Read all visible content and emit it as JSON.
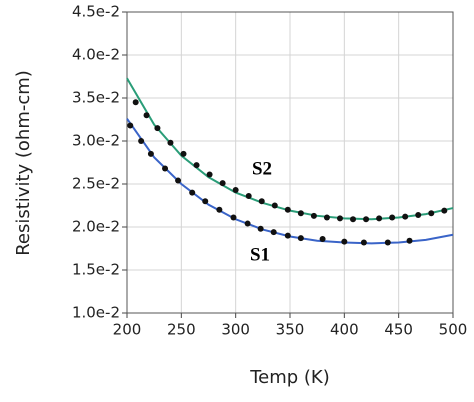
{
  "chart_data": {
    "type": "scatter",
    "xlabel": "Temp (K)",
    "ylabel": "Resistivity (ohm-cm)",
    "xlim": [
      200,
      500
    ],
    "xticks": [
      200,
      250,
      300,
      350,
      400,
      450,
      500
    ],
    "ylim": [
      0.01,
      0.045
    ],
    "yticks": [
      {
        "value": 0.01,
        "label": "1.0e-2"
      },
      {
        "value": 0.015,
        "label": "1.5e-2"
      },
      {
        "value": 0.02,
        "label": "2.0e-2"
      },
      {
        "value": 0.025,
        "label": "2.5e-2"
      },
      {
        "value": 0.03,
        "label": "3.0e-2"
      },
      {
        "value": 0.035,
        "label": "3.5e-2"
      },
      {
        "value": 0.04,
        "label": "4.0e-2"
      },
      {
        "value": 0.045,
        "label": "4.5e-2"
      }
    ],
    "grid": true,
    "series": [
      {
        "name": "S1",
        "color": "#3a64c8",
        "marker_color": "#111111",
        "x": [
          203,
          213,
          222,
          235,
          247,
          260,
          272,
          285,
          298,
          311,
          323,
          335,
          348,
          360,
          380,
          400,
          418,
          440,
          460
        ],
        "values": [
          0.0318,
          0.03,
          0.0285,
          0.0268,
          0.0254,
          0.024,
          0.023,
          0.022,
          0.0211,
          0.0204,
          0.0198,
          0.0194,
          0.019,
          0.0187,
          0.0186,
          0.0183,
          0.0182,
          0.0182,
          0.0184
        ],
        "fit_x": [
          200,
          225,
          250,
          275,
          300,
          325,
          350,
          375,
          400,
          425,
          450,
          475,
          500
        ],
        "fit_values": [
          0.0326,
          0.0281,
          0.025,
          0.0226,
          0.0209,
          0.0197,
          0.0189,
          0.0184,
          0.0182,
          0.0181,
          0.0182,
          0.0185,
          0.0191
        ]
      },
      {
        "name": "S2",
        "color": "#2a9d78",
        "marker_color": "#111111",
        "x": [
          208,
          218,
          228,
          240,
          252,
          264,
          276,
          288,
          300,
          312,
          324,
          336,
          348,
          360,
          372,
          384,
          396,
          408,
          420,
          432,
          444,
          456,
          468,
          480,
          492
        ],
        "values": [
          0.0345,
          0.033,
          0.0315,
          0.0298,
          0.0285,
          0.0272,
          0.0261,
          0.0251,
          0.0243,
          0.0236,
          0.023,
          0.0225,
          0.022,
          0.0216,
          0.0213,
          0.0211,
          0.021,
          0.0209,
          0.0209,
          0.021,
          0.0211,
          0.0212,
          0.0214,
          0.0216,
          0.0219
        ],
        "fit_x": [
          200,
          225,
          250,
          275,
          300,
          325,
          350,
          375,
          400,
          425,
          450,
          475,
          500
        ],
        "fit_values": [
          0.0373,
          0.0319,
          0.0283,
          0.0258,
          0.024,
          0.0228,
          0.0219,
          0.0213,
          0.021,
          0.0209,
          0.0211,
          0.0215,
          0.0222
        ]
      }
    ]
  }
}
